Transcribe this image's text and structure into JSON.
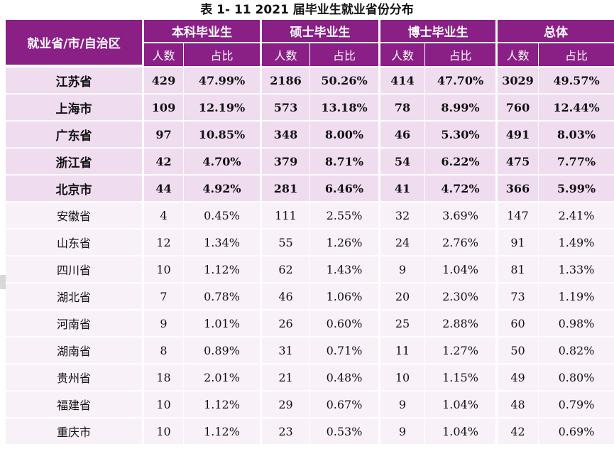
{
  "caption": "表 1- 11    2021 届毕业生就业省份分布",
  "header": {
    "region_label": "就业省/市/自治区",
    "groups": [
      "本科毕业生",
      "硕士毕业生",
      "博士毕业生",
      "总体"
    ],
    "count_label": "人数",
    "ratio_label": "占比"
  },
  "rows": [
    {
      "province": "江苏省",
      "bold": true,
      "cells": [
        "429",
        "47.99%",
        "2186",
        "50.26%",
        "414",
        "47.70%",
        "3029",
        "49.57%"
      ]
    },
    {
      "province": "上海市",
      "bold": true,
      "cells": [
        "109",
        "12.19%",
        "573",
        "13.18%",
        "78",
        "8.99%",
        "760",
        "12.44%"
      ]
    },
    {
      "province": "广东省",
      "bold": true,
      "cells": [
        "97",
        "10.85%",
        "348",
        "8.00%",
        "46",
        "5.30%",
        "491",
        "8.03%"
      ]
    },
    {
      "province": "浙江省",
      "bold": true,
      "cells": [
        "42",
        "4.70%",
        "379",
        "8.71%",
        "54",
        "6.22%",
        "475",
        "7.77%"
      ]
    },
    {
      "province": "北京市",
      "bold": true,
      "cells": [
        "44",
        "4.92%",
        "281",
        "6.46%",
        "41",
        "4.72%",
        "366",
        "5.99%"
      ]
    },
    {
      "province": "安徽省",
      "bold": false,
      "cells": [
        "4",
        "0.45%",
        "111",
        "2.55%",
        "32",
        "3.69%",
        "147",
        "2.41%"
      ]
    },
    {
      "province": "山东省",
      "bold": false,
      "cells": [
        "12",
        "1.34%",
        "55",
        "1.26%",
        "24",
        "2.76%",
        "91",
        "1.49%"
      ]
    },
    {
      "province": "四川省",
      "bold": false,
      "cells": [
        "10",
        "1.12%",
        "62",
        "1.43%",
        "9",
        "1.04%",
        "81",
        "1.33%"
      ]
    },
    {
      "province": "湖北省",
      "bold": false,
      "cells": [
        "7",
        "0.78%",
        "46",
        "1.06%",
        "20",
        "2.30%",
        "73",
        "1.19%"
      ]
    },
    {
      "province": "河南省",
      "bold": false,
      "cells": [
        "9",
        "1.01%",
        "26",
        "0.60%",
        "25",
        "2.88%",
        "60",
        "0.98%"
      ]
    },
    {
      "province": "湖南省",
      "bold": false,
      "cells": [
        "8",
        "0.89%",
        "31",
        "0.71%",
        "11",
        "1.27%",
        "50",
        "0.82%"
      ]
    },
    {
      "province": "贵州省",
      "bold": false,
      "cells": [
        "18",
        "2.01%",
        "21",
        "0.48%",
        "10",
        "1.15%",
        "49",
        "0.80%"
      ]
    },
    {
      "province": "福建省",
      "bold": false,
      "cells": [
        "10",
        "1.12%",
        "29",
        "0.67%",
        "9",
        "1.04%",
        "48",
        "0.79%"
      ]
    },
    {
      "province": "重庆市",
      "bold": false,
      "cells": [
        "10",
        "1.12%",
        "23",
        "0.53%",
        "9",
        "1.04%",
        "42",
        "0.69%"
      ]
    }
  ]
}
